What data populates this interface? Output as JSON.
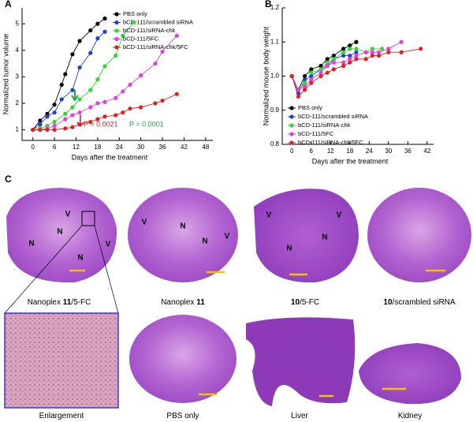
{
  "chart_data": [
    {
      "type": "line",
      "label": "A",
      "x_label": "Days after the treatment",
      "y_label": "Normalized tumor volume",
      "xlim": [
        -3,
        50
      ],
      "xticks": [
        0,
        6,
        12,
        18,
        24,
        30,
        36,
        42,
        48
      ],
      "ylim": [
        0.6,
        5.6
      ],
      "yticks": [
        1,
        2,
        3,
        4,
        5
      ],
      "legend": "upper right",
      "series": [
        {
          "name": "PBS only",
          "color": "#000000",
          "x": [
            0,
            2,
            4,
            6,
            8,
            9,
            11,
            13,
            16,
            18,
            20
          ],
          "values": [
            1.0,
            1.35,
            1.6,
            1.95,
            2.7,
            3.1,
            3.85,
            4.35,
            4.75,
            5.0,
            5.2
          ]
        },
        {
          "name": "bCD-111/scrambled siRNA",
          "color": "#1f3fd6",
          "x": [
            0,
            2,
            4,
            6,
            8,
            11,
            13,
            16,
            18,
            20
          ],
          "values": [
            1.0,
            1.2,
            1.5,
            1.65,
            2.15,
            2.5,
            3.35,
            3.9,
            4.45,
            4.7
          ]
        },
        {
          "name": "bCD-111/siRNA-chk",
          "color": "#33d633",
          "x": [
            0,
            2,
            4,
            6,
            9,
            11,
            13,
            16,
            18,
            20,
            23,
            25,
            28
          ],
          "values": [
            1.0,
            1.05,
            1.15,
            1.3,
            1.6,
            1.85,
            2.15,
            2.5,
            2.9,
            3.4,
            3.8,
            4.55,
            5.05
          ]
        },
        {
          "name": "bCD-111/5FC",
          "color": "#e040e0",
          "x": [
            0,
            2,
            4,
            6,
            9,
            11,
            13,
            16,
            18,
            20,
            23,
            25,
            27,
            30,
            34,
            36,
            40
          ],
          "values": [
            1.0,
            1.0,
            1.05,
            1.15,
            1.4,
            1.55,
            1.65,
            1.85,
            2.0,
            2.05,
            2.2,
            2.45,
            2.7,
            3.05,
            3.5,
            3.95,
            4.55
          ]
        },
        {
          "name": "bCD-111/siRNA-chk/5FC",
          "color": "#e02020",
          "x": [
            0,
            2,
            4,
            6,
            9,
            11,
            13,
            16,
            18,
            20,
            23,
            25,
            27,
            30,
            34,
            36,
            40
          ],
          "values": [
            1.0,
            1.0,
            1.0,
            1.0,
            1.05,
            1.1,
            1.2,
            1.3,
            1.4,
            1.5,
            1.55,
            1.65,
            1.8,
            1.85,
            2.0,
            2.1,
            2.35
          ]
        }
      ],
      "annotations": [
        {
          "text": "P = 0.0021",
          "color": "#e02020"
        },
        {
          "text": "P = 0.0001",
          "color": "#1aa84a"
        }
      ]
    },
    {
      "type": "line",
      "label": "B",
      "x_label": "Days after the treatment",
      "y_label": "Normalized mouse body weight",
      "xlim": [
        -3,
        44
      ],
      "xticks": [
        0,
        6,
        12,
        18,
        24,
        30,
        36,
        42
      ],
      "ylim": [
        0.8,
        1.2
      ],
      "yticks": [
        0.8,
        0.9,
        {
          "value": 1.0,
          "label": "1.0"
        },
        1.1,
        1.2
      ],
      "legend": "lower right",
      "series": [
        {
          "name": "PBS only",
          "color": "#000000",
          "x": [
            0,
            2,
            4,
            6,
            9,
            11,
            13,
            16,
            18,
            20
          ],
          "values": [
            1.0,
            0.96,
            1.0,
            1.02,
            1.03,
            1.05,
            1.06,
            1.08,
            1.09,
            1.1
          ]
        },
        {
          "name": "bCD-111/scrambled siRNA",
          "color": "#1f3fd6",
          "x": [
            0,
            2,
            4,
            6,
            9,
            11,
            13,
            16,
            18,
            20
          ],
          "values": [
            1.0,
            0.95,
            0.99,
            1.0,
            1.02,
            1.03,
            1.05,
            1.06,
            1.06,
            1.07
          ]
        },
        {
          "name": "bCD-111/siRNA-chk",
          "color": "#33d633",
          "x": [
            0,
            2,
            4,
            6,
            9,
            11,
            13,
            16,
            18,
            20,
            23,
            25,
            28
          ],
          "values": [
            1.0,
            0.96,
            0.98,
            1.01,
            1.02,
            1.04,
            1.05,
            1.07,
            1.08,
            1.08,
            1.07,
            1.08,
            1.08
          ]
        },
        {
          "name": "bCD-111/5FC",
          "color": "#e040e0",
          "x": [
            0,
            2,
            4,
            6,
            9,
            11,
            13,
            16,
            18,
            20,
            23,
            25,
            27,
            30,
            34
          ],
          "values": [
            1.0,
            0.96,
            0.97,
            0.99,
            1.01,
            1.03,
            1.04,
            1.04,
            1.05,
            1.06,
            1.07,
            1.07,
            1.07,
            1.08,
            1.1
          ]
        },
        {
          "name": "bCD-111/siRNA-chk/5FC",
          "color": "#e02020",
          "x": [
            0,
            2,
            4,
            6,
            9,
            11,
            13,
            16,
            18,
            20,
            23,
            25,
            27,
            30,
            34,
            40
          ],
          "values": [
            1.0,
            0.94,
            0.96,
            0.98,
            1.0,
            1.01,
            1.02,
            1.03,
            1.04,
            1.05,
            1.05,
            1.06,
            1.06,
            1.07,
            1.07,
            1.08
          ]
        }
      ]
    }
  ],
  "panel_c": {
    "label": "C",
    "images": [
      {
        "caption": [
          {
            "text": "Nanoplex "
          },
          {
            "text": "11",
            "bold": true
          },
          {
            "text": "/5-FC"
          }
        ],
        "marks": [
          "V",
          "N",
          "N",
          "N",
          "V"
        ]
      },
      {
        "caption": [
          {
            "text": "Nanoplex "
          },
          {
            "text": "11",
            "bold": true
          }
        ],
        "marks": [
          "V",
          "N",
          "N",
          "V"
        ]
      },
      {
        "caption": [
          {
            "text": "10",
            "bold": true
          },
          {
            "text": "/5-FC"
          }
        ],
        "marks": [
          "V",
          "V",
          "N",
          "N"
        ]
      },
      {
        "caption": [
          {
            "text": "10",
            "bold": true
          },
          {
            "text": "/scrambled siRNA"
          }
        ],
        "marks": []
      },
      {
        "caption": [
          {
            "text": "Enlargement"
          }
        ],
        "marks": []
      },
      {
        "caption": [
          {
            "text": "PBS only"
          }
        ],
        "marks": []
      },
      {
        "caption": [
          {
            "text": "Liver"
          }
        ],
        "marks": []
      },
      {
        "caption": [
          {
            "text": "Kidney"
          }
        ],
        "marks": []
      }
    ]
  }
}
